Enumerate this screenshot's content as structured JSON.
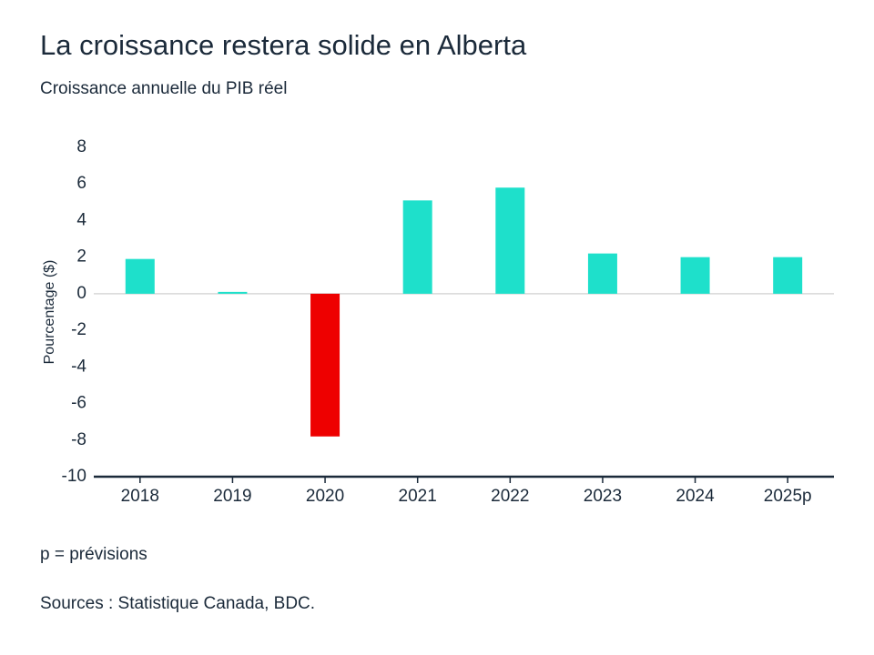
{
  "chart_data": {
    "type": "bar",
    "title": "La croissance restera solide en Alberta",
    "subtitle": "Croissance annuelle du PIB réel",
    "y_label": "Pourcentage ($)",
    "categories": [
      "2018",
      "2019",
      "2020",
      "2021",
      "2022",
      "2023",
      "2024",
      "2025p"
    ],
    "values": [
      1.9,
      0.1,
      -7.8,
      5.1,
      5.8,
      2.2,
      2.0,
      2.0
    ],
    "colors": [
      "#1ee0cb",
      "#1ee0cb",
      "#ee0000",
      "#1ee0cb",
      "#1ee0cb",
      "#1ee0cb",
      "#1ee0cb",
      "#1ee0cb"
    ],
    "ylim": [
      -10,
      8
    ],
    "yticks": [
      -10,
      -8,
      -6,
      -4,
      -2,
      0,
      2,
      4,
      6,
      8
    ],
    "grid": false,
    "notes": [
      "p = prévisions",
      "Sources : Statistique Canada, BDC."
    ]
  }
}
